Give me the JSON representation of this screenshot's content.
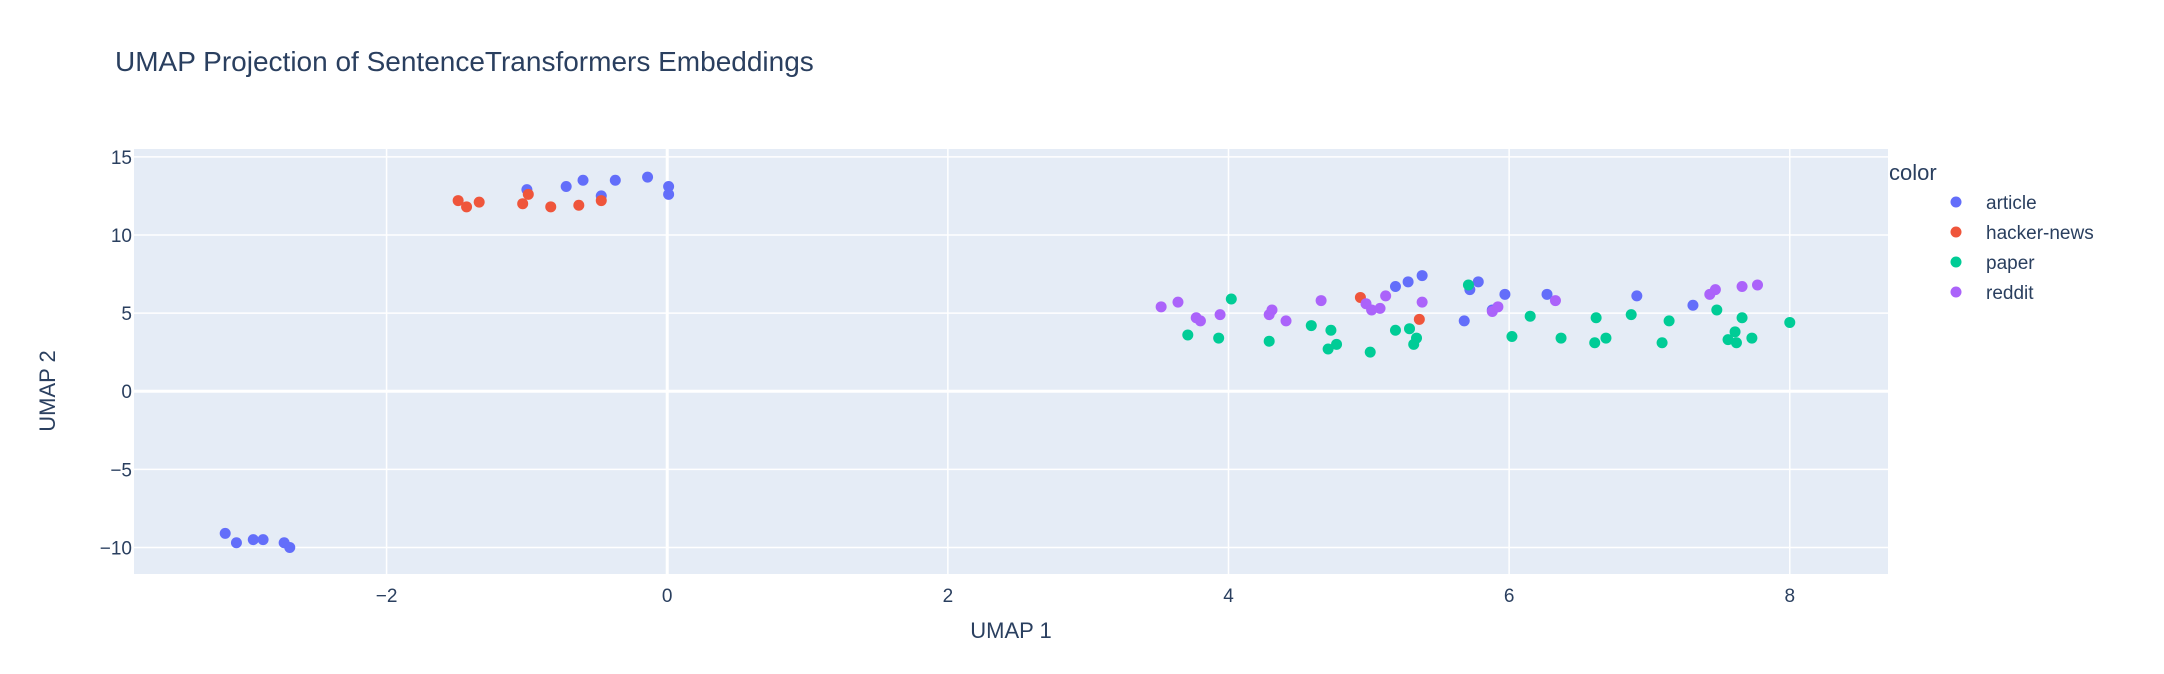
{
  "chart_data": {
    "type": "scatter",
    "title": "UMAP Projection of SentenceTransformers Embeddings",
    "xlabel": "UMAP 1",
    "ylabel": "UMAP 2",
    "xlim": [
      -3.8,
      8.7
    ],
    "ylim": [
      -11.7,
      15.5
    ],
    "xticks": [
      -2,
      0,
      2,
      4,
      6,
      8
    ],
    "xtick_labels": [
      "−2",
      "0",
      "2",
      "4",
      "6",
      "8"
    ],
    "yticks": [
      -10,
      -5,
      0,
      5,
      10,
      15
    ],
    "ytick_labels": [
      "−10",
      "−5",
      "0",
      "5",
      "10",
      "15"
    ],
    "grid": true,
    "legend": {
      "title": "color",
      "placement": "right"
    },
    "colors": {
      "plot_bg": "#e5ecf6",
      "grid": "#ffffff"
    },
    "series": [
      {
        "name": "article",
        "color": "#636efa",
        "points": [
          [
            -1.0,
            12.9
          ],
          [
            -0.72,
            13.1
          ],
          [
            -0.6,
            13.5
          ],
          [
            -0.47,
            12.5
          ],
          [
            -0.37,
            13.5
          ],
          [
            -0.14,
            13.7
          ],
          [
            0.01,
            13.1
          ],
          [
            0.01,
            12.6
          ],
          [
            -3.15,
            -9.1
          ],
          [
            -3.07,
            -9.7
          ],
          [
            -2.95,
            -9.5
          ],
          [
            -2.88,
            -9.5
          ],
          [
            -2.73,
            -9.7
          ],
          [
            -2.69,
            -10.0
          ],
          [
            5.19,
            6.7
          ],
          [
            5.28,
            7.0
          ],
          [
            5.38,
            7.4
          ],
          [
            5.68,
            4.5
          ],
          [
            5.72,
            6.5
          ],
          [
            5.78,
            7.0
          ],
          [
            5.88,
            5.2
          ],
          [
            5.97,
            6.2
          ],
          [
            6.27,
            6.2
          ],
          [
            6.91,
            6.1
          ],
          [
            7.31,
            5.5
          ]
        ]
      },
      {
        "name": "hacker-news",
        "color": "#ef553b",
        "points": [
          [
            -1.49,
            12.2
          ],
          [
            -1.43,
            11.8
          ],
          [
            -1.34,
            12.1
          ],
          [
            -1.03,
            12.0
          ],
          [
            -0.99,
            12.6
          ],
          [
            -0.83,
            11.8
          ],
          [
            -0.63,
            11.9
          ],
          [
            -0.47,
            12.2
          ],
          [
            4.94,
            6.0
          ],
          [
            5.36,
            4.6
          ]
        ]
      },
      {
        "name": "paper",
        "color": "#00cc96",
        "points": [
          [
            3.71,
            3.6
          ],
          [
            3.93,
            3.4
          ],
          [
            4.02,
            5.9
          ],
          [
            4.29,
            3.2
          ],
          [
            4.59,
            4.2
          ],
          [
            4.71,
            2.7
          ],
          [
            4.73,
            3.9
          ],
          [
            4.77,
            3.0
          ],
          [
            5.01,
            2.5
          ],
          [
            5.19,
            3.9
          ],
          [
            5.29,
            4.0
          ],
          [
            5.32,
            3.0
          ],
          [
            5.34,
            3.4
          ],
          [
            5.71,
            6.8
          ],
          [
            6.02,
            3.5
          ],
          [
            6.15,
            4.8
          ],
          [
            6.37,
            3.4
          ],
          [
            6.61,
            3.1
          ],
          [
            6.62,
            4.7
          ],
          [
            6.69,
            3.4
          ],
          [
            6.87,
            4.9
          ],
          [
            7.09,
            3.1
          ],
          [
            7.14,
            4.5
          ],
          [
            7.48,
            5.2
          ],
          [
            7.56,
            3.3
          ],
          [
            7.61,
            3.8
          ],
          [
            7.62,
            3.1
          ],
          [
            7.66,
            4.7
          ],
          [
            7.73,
            3.4
          ],
          [
            8.0,
            4.4
          ]
        ]
      },
      {
        "name": "reddit",
        "color": "#ab63fa",
        "points": [
          [
            3.52,
            5.4
          ],
          [
            3.64,
            5.7
          ],
          [
            3.77,
            4.7
          ],
          [
            3.8,
            4.5
          ],
          [
            3.94,
            4.9
          ],
          [
            4.29,
            4.9
          ],
          [
            4.31,
            5.2
          ],
          [
            4.41,
            4.5
          ],
          [
            4.66,
            5.8
          ],
          [
            4.98,
            5.6
          ],
          [
            5.02,
            5.2
          ],
          [
            5.08,
            5.3
          ],
          [
            5.12,
            6.1
          ],
          [
            5.38,
            5.7
          ],
          [
            5.88,
            5.1
          ],
          [
            5.92,
            5.4
          ],
          [
            6.33,
            5.8
          ],
          [
            7.43,
            6.2
          ],
          [
            7.47,
            6.5
          ],
          [
            7.66,
            6.7
          ],
          [
            7.77,
            6.8
          ]
        ]
      }
    ]
  }
}
